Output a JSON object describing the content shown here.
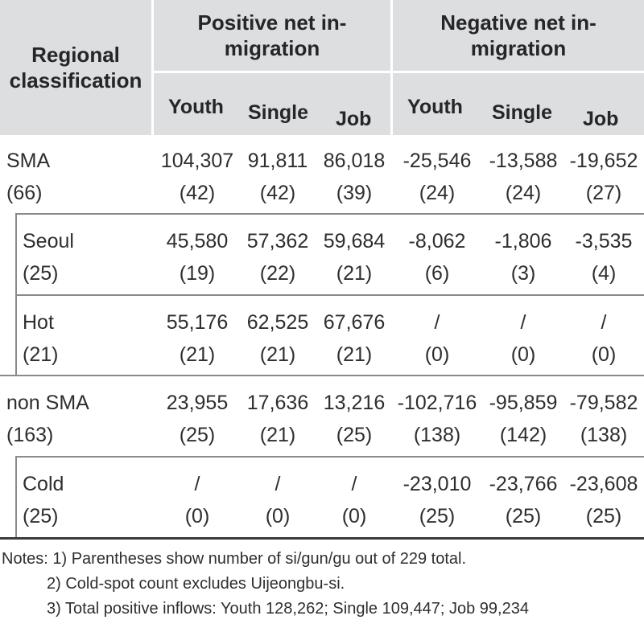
{
  "header": {
    "row_label": [
      "Regional",
      "classification"
    ],
    "groups": [
      {
        "label": [
          "Positive net in-",
          "migration"
        ],
        "subs": [
          "Youth",
          "Single",
          "Job"
        ]
      },
      {
        "label": [
          "Negative net in-",
          "migration"
        ],
        "subs": [
          "Youth",
          "Single",
          "Job"
        ]
      }
    ]
  },
  "rows": [
    {
      "name": "SMA",
      "count": "(66)",
      "values": [
        "104,307",
        "91,811",
        "86,018",
        "-25,546",
        "-13,588",
        "-19,652"
      ],
      "counts": [
        "(42)",
        "(42)",
        "(39)",
        "(24)",
        "(24)",
        "(27)"
      ]
    },
    {
      "name": "Seoul",
      "count": "(25)",
      "values": [
        "45,580",
        "57,362",
        "59,684",
        "-8,062",
        "-1,806",
        "-3,535"
      ],
      "counts": [
        "(19)",
        "(22)",
        "(21)",
        "(6)",
        "(3)",
        "(4)"
      ]
    },
    {
      "name": "Hot",
      "count": "(21)",
      "values": [
        "55,176",
        "62,525",
        "67,676",
        "/",
        "/",
        "/"
      ],
      "counts": [
        "(21)",
        "(21)",
        "(21)",
        "(0)",
        "(0)",
        "(0)"
      ]
    },
    {
      "name": "non SMA",
      "count": "(163)",
      "values": [
        "23,955",
        "17,636",
        "13,216",
        "-102,716",
        "-95,859",
        "-79,582"
      ],
      "counts": [
        "(25)",
        "(21)",
        "(25)",
        "(138)",
        "(142)",
        "(138)"
      ]
    },
    {
      "name": "Cold",
      "count": "(25)",
      "values": [
        "/",
        "/",
        "/",
        "-23,010",
        "-23,766",
        "-23,608"
      ],
      "counts": [
        "(0)",
        "(0)",
        "(0)",
        "(25)",
        "(25)",
        "(25)"
      ]
    }
  ],
  "notes": [
    "Notes: 1) Parentheses show number of si/gun/gu out of 229 total.",
    "2) Cold-spot count excludes Uijeongbu-si.",
    "3) Total positive inflows: Youth 128,262; Single 109,447; Job 99,234"
  ],
  "colors": {
    "header_bg": "#dddee0",
    "rule": "#8a8a8a",
    "bottom_rule": "#3a3a3a"
  }
}
